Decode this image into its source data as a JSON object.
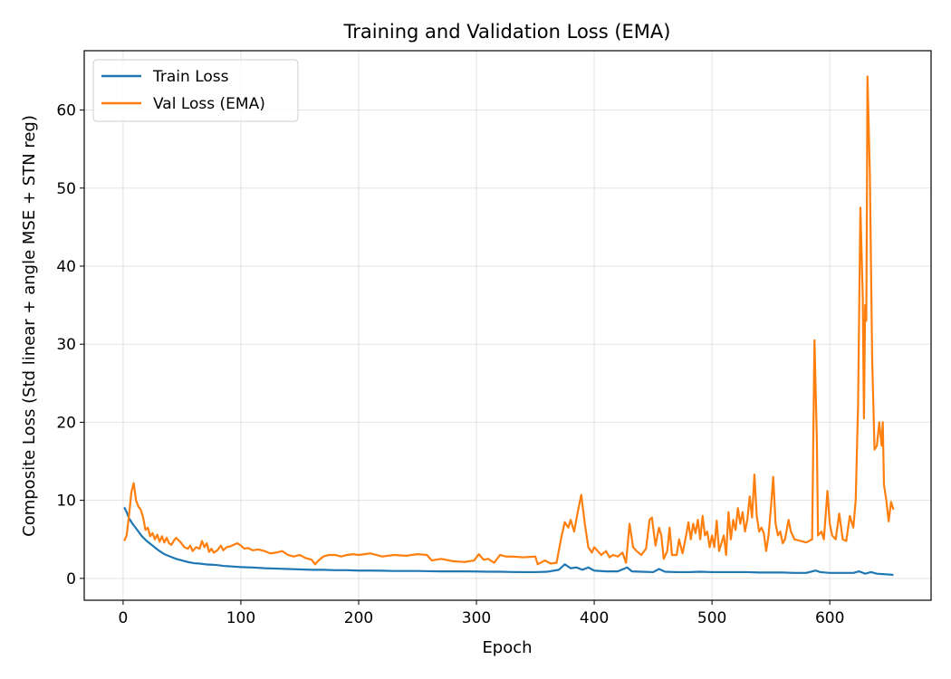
{
  "chart_data": {
    "type": "line",
    "title": "Training and Validation Loss (EMA)",
    "xlabel": "Epoch",
    "ylabel": "Composite Loss (Std linear + angle MSE + STN reg)",
    "xlim": [
      -33,
      686
    ],
    "ylim": [
      -2.8,
      67.6
    ],
    "xticks": [
      0,
      100,
      200,
      300,
      400,
      500,
      600
    ],
    "yticks": [
      0,
      10,
      20,
      30,
      40,
      50,
      60
    ],
    "grid": true,
    "legend_position": "upper left",
    "series": [
      {
        "name": "Train Loss",
        "color": "#1f77b4",
        "points": [
          [
            1,
            9.1
          ],
          [
            3,
            8.5
          ],
          [
            5,
            7.7
          ],
          [
            8,
            7.0
          ],
          [
            12,
            6.2
          ],
          [
            16,
            5.4
          ],
          [
            20,
            4.8
          ],
          [
            25,
            4.2
          ],
          [
            30,
            3.6
          ],
          [
            35,
            3.1
          ],
          [
            40,
            2.8
          ],
          [
            45,
            2.5
          ],
          [
            50,
            2.3
          ],
          [
            55,
            2.1
          ],
          [
            60,
            1.95
          ],
          [
            65,
            1.9
          ],
          [
            70,
            1.8
          ],
          [
            75,
            1.75
          ],
          [
            80,
            1.7
          ],
          [
            85,
            1.6
          ],
          [
            90,
            1.55
          ],
          [
            95,
            1.5
          ],
          [
            100,
            1.45
          ],
          [
            110,
            1.4
          ],
          [
            120,
            1.3
          ],
          [
            130,
            1.25
          ],
          [
            140,
            1.2
          ],
          [
            150,
            1.15
          ],
          [
            160,
            1.1
          ],
          [
            170,
            1.1
          ],
          [
            180,
            1.05
          ],
          [
            190,
            1.05
          ],
          [
            200,
            1.0
          ],
          [
            210,
            1.0
          ],
          [
            220,
            0.98
          ],
          [
            230,
            0.95
          ],
          [
            240,
            0.95
          ],
          [
            250,
            0.95
          ],
          [
            260,
            0.92
          ],
          [
            270,
            0.9
          ],
          [
            280,
            0.9
          ],
          [
            290,
            0.9
          ],
          [
            300,
            0.88
          ],
          [
            310,
            0.85
          ],
          [
            320,
            0.85
          ],
          [
            330,
            0.82
          ],
          [
            340,
            0.8
          ],
          [
            350,
            0.8
          ],
          [
            360,
            0.85
          ],
          [
            370,
            1.1
          ],
          [
            375,
            1.8
          ],
          [
            380,
            1.3
          ],
          [
            385,
            1.4
          ],
          [
            390,
            1.1
          ],
          [
            395,
            1.4
          ],
          [
            400,
            1.0
          ],
          [
            410,
            0.9
          ],
          [
            420,
            0.9
          ],
          [
            428,
            1.4
          ],
          [
            432,
            0.9
          ],
          [
            440,
            0.85
          ],
          [
            450,
            0.8
          ],
          [
            455,
            1.2
          ],
          [
            460,
            0.85
          ],
          [
            470,
            0.8
          ],
          [
            480,
            0.8
          ],
          [
            490,
            0.85
          ],
          [
            500,
            0.8
          ],
          [
            510,
            0.8
          ],
          [
            520,
            0.8
          ],
          [
            530,
            0.8
          ],
          [
            540,
            0.75
          ],
          [
            550,
            0.75
          ],
          [
            560,
            0.75
          ],
          [
            570,
            0.7
          ],
          [
            580,
            0.7
          ],
          [
            588,
            1.0
          ],
          [
            592,
            0.8
          ],
          [
            600,
            0.7
          ],
          [
            610,
            0.7
          ],
          [
            620,
            0.7
          ],
          [
            625,
            0.9
          ],
          [
            630,
            0.6
          ],
          [
            635,
            0.8
          ],
          [
            640,
            0.6
          ],
          [
            645,
            0.55
          ],
          [
            650,
            0.5
          ],
          [
            654,
            0.45
          ]
        ]
      },
      {
        "name": "Val Loss (EMA)",
        "color": "#ff7f0e",
        "points": [
          [
            1,
            4.8
          ],
          [
            3,
            5.5
          ],
          [
            5,
            8.0
          ],
          [
            7,
            11.0
          ],
          [
            9,
            12.2
          ],
          [
            11,
            10.0
          ],
          [
            13,
            9.2
          ],
          [
            15,
            8.8
          ],
          [
            17,
            7.8
          ],
          [
            19,
            6.2
          ],
          [
            21,
            6.5
          ],
          [
            23,
            5.4
          ],
          [
            25,
            5.8
          ],
          [
            27,
            5.0
          ],
          [
            29,
            5.6
          ],
          [
            31,
            4.7
          ],
          [
            33,
            5.4
          ],
          [
            35,
            4.6
          ],
          [
            37,
            5.2
          ],
          [
            39,
            4.5
          ],
          [
            41,
            4.3
          ],
          [
            43,
            4.8
          ],
          [
            45,
            5.2
          ],
          [
            47,
            4.9
          ],
          [
            49,
            4.6
          ],
          [
            52,
            4.0
          ],
          [
            55,
            3.8
          ],
          [
            57,
            4.2
          ],
          [
            59,
            3.5
          ],
          [
            62,
            4.0
          ],
          [
            65,
            3.8
          ],
          [
            67,
            4.8
          ],
          [
            69,
            4.0
          ],
          [
            71,
            4.5
          ],
          [
            73,
            3.4
          ],
          [
            75,
            3.8
          ],
          [
            77,
            3.3
          ],
          [
            80,
            3.6
          ],
          [
            83,
            4.2
          ],
          [
            85,
            3.6
          ],
          [
            88,
            4.0
          ],
          [
            91,
            4.1
          ],
          [
            94,
            4.3
          ],
          [
            97,
            4.5
          ],
          [
            100,
            4.2
          ],
          [
            103,
            3.8
          ],
          [
            106,
            3.9
          ],
          [
            110,
            3.6
          ],
          [
            115,
            3.7
          ],
          [
            120,
            3.5
          ],
          [
            125,
            3.2
          ],
          [
            130,
            3.3
          ],
          [
            135,
            3.5
          ],
          [
            140,
            3.0
          ],
          [
            145,
            2.8
          ],
          [
            150,
            3.0
          ],
          [
            155,
            2.6
          ],
          [
            160,
            2.4
          ],
          [
            163,
            1.8
          ],
          [
            166,
            2.3
          ],
          [
            170,
            2.8
          ],
          [
            175,
            3.0
          ],
          [
            180,
            3.0
          ],
          [
            185,
            2.8
          ],
          [
            190,
            3.0
          ],
          [
            195,
            3.1
          ],
          [
            200,
            3.0
          ],
          [
            210,
            3.2
          ],
          [
            220,
            2.8
          ],
          [
            230,
            3.0
          ],
          [
            240,
            2.9
          ],
          [
            250,
            3.1
          ],
          [
            258,
            3.0
          ],
          [
            262,
            2.3
          ],
          [
            270,
            2.5
          ],
          [
            280,
            2.2
          ],
          [
            290,
            2.1
          ],
          [
            298,
            2.3
          ],
          [
            302,
            3.1
          ],
          [
            306,
            2.4
          ],
          [
            310,
            2.5
          ],
          [
            315,
            2.0
          ],
          [
            320,
            3.0
          ],
          [
            325,
            2.8
          ],
          [
            330,
            2.8
          ],
          [
            340,
            2.7
          ],
          [
            350,
            2.8
          ],
          [
            352,
            1.8
          ],
          [
            358,
            2.3
          ],
          [
            363,
            1.9
          ],
          [
            368,
            2.0
          ],
          [
            372,
            5.2
          ],
          [
            375,
            7.2
          ],
          [
            378,
            6.5
          ],
          [
            380,
            7.5
          ],
          [
            383,
            6.0
          ],
          [
            386,
            8.5
          ],
          [
            389,
            10.7
          ],
          [
            392,
            7.0
          ],
          [
            395,
            4.0
          ],
          [
            398,
            3.3
          ],
          [
            400,
            4.0
          ],
          [
            403,
            3.5
          ],
          [
            406,
            3.0
          ],
          [
            410,
            3.5
          ],
          [
            413,
            2.7
          ],
          [
            416,
            3.0
          ],
          [
            420,
            2.8
          ],
          [
            424,
            3.3
          ],
          [
            427,
            2.0
          ],
          [
            430,
            7.0
          ],
          [
            433,
            4.0
          ],
          [
            436,
            3.5
          ],
          [
            440,
            3.0
          ],
          [
            444,
            3.8
          ],
          [
            447,
            7.5
          ],
          [
            449,
            7.8
          ],
          [
            452,
            4.2
          ],
          [
            455,
            6.5
          ],
          [
            457,
            5.5
          ],
          [
            459,
            2.5
          ],
          [
            462,
            3.5
          ],
          [
            464,
            6.5
          ],
          [
            466,
            3.0
          ],
          [
            470,
            3.0
          ],
          [
            472,
            5.0
          ],
          [
            475,
            3.2
          ],
          [
            478,
            5.5
          ],
          [
            480,
            7.2
          ],
          [
            482,
            5.0
          ],
          [
            484,
            7.0
          ],
          [
            486,
            5.8
          ],
          [
            488,
            7.5
          ],
          [
            490,
            5.0
          ],
          [
            492,
            8.0
          ],
          [
            494,
            5.5
          ],
          [
            496,
            6.0
          ],
          [
            498,
            4.0
          ],
          [
            500,
            5.5
          ],
          [
            502,
            4.0
          ],
          [
            504,
            7.4
          ],
          [
            506,
            3.5
          ],
          [
            508,
            4.5
          ],
          [
            510,
            5.5
          ],
          [
            512,
            3.0
          ],
          [
            514,
            8.5
          ],
          [
            516,
            5.0
          ],
          [
            518,
            7.5
          ],
          [
            520,
            6.2
          ],
          [
            522,
            9.0
          ],
          [
            524,
            7.0
          ],
          [
            526,
            8.5
          ],
          [
            528,
            6.0
          ],
          [
            530,
            7.5
          ],
          [
            532,
            10.5
          ],
          [
            534,
            7.8
          ],
          [
            536,
            13.3
          ],
          [
            538,
            8.0
          ],
          [
            540,
            6.0
          ],
          [
            542,
            6.5
          ],
          [
            544,
            5.8
          ],
          [
            546,
            3.5
          ],
          [
            548,
            5.5
          ],
          [
            550,
            9.0
          ],
          [
            552,
            13.0
          ],
          [
            554,
            7.0
          ],
          [
            556,
            5.5
          ],
          [
            558,
            6.0
          ],
          [
            560,
            4.5
          ],
          [
            562,
            5.0
          ],
          [
            565,
            7.5
          ],
          [
            567,
            6.0
          ],
          [
            570,
            5.0
          ],
          [
            575,
            4.8
          ],
          [
            580,
            4.6
          ],
          [
            585,
            5.0
          ],
          [
            587,
            30.5
          ],
          [
            589,
            18.0
          ],
          [
            590,
            5.5
          ],
          [
            593,
            6.0
          ],
          [
            595,
            5.0
          ],
          [
            598,
            11.2
          ],
          [
            600,
            7.0
          ],
          [
            602,
            5.5
          ],
          [
            605,
            5.0
          ],
          [
            608,
            8.3
          ],
          [
            611,
            5.0
          ],
          [
            614,
            4.8
          ],
          [
            617,
            8.0
          ],
          [
            620,
            6.5
          ],
          [
            622,
            10.0
          ],
          [
            624,
            22.0
          ],
          [
            626,
            47.5
          ],
          [
            628,
            36.0
          ],
          [
            629,
            20.5
          ],
          [
            630,
            35.0
          ],
          [
            631,
            33.0
          ],
          [
            632,
            64.3
          ],
          [
            634,
            52.0
          ],
          [
            636,
            28.0
          ],
          [
            638,
            16.5
          ],
          [
            640,
            17.0
          ],
          [
            642,
            20.0
          ],
          [
            644,
            17.0
          ],
          [
            645,
            20.0
          ],
          [
            646,
            12.0
          ],
          [
            648,
            10.0
          ],
          [
            650,
            7.3
          ],
          [
            652,
            9.8
          ],
          [
            654,
            8.8
          ]
        ]
      }
    ]
  }
}
